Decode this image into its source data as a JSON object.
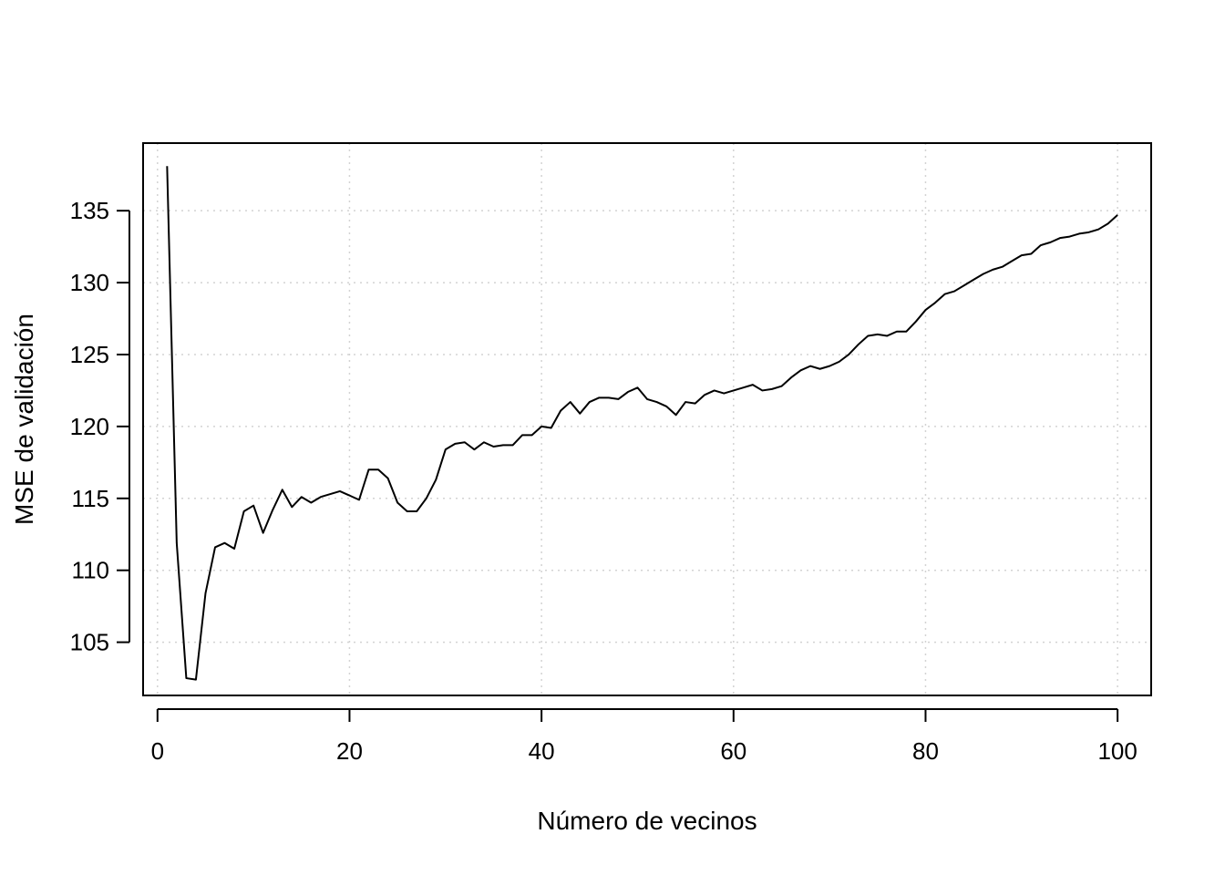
{
  "chart_data": {
    "type": "line",
    "title": "",
    "xlabel": "Número de vecinos",
    "ylabel": "MSE de validación",
    "xlim": [
      -1.5,
      103.5
    ],
    "ylim": [
      101.3,
      139.7
    ],
    "x_ticks": [
      0,
      20,
      40,
      60,
      80,
      100
    ],
    "y_ticks": [
      105,
      110,
      115,
      120,
      125,
      130,
      135
    ],
    "grid": true,
    "legend": "none",
    "line_color": "#000000",
    "grid_color": "#d3d3d3",
    "series": [
      {
        "x": [
          1,
          2,
          3,
          4,
          5,
          6,
          7,
          8,
          9,
          10,
          11,
          12,
          13,
          14,
          15,
          16,
          17,
          18,
          19,
          20,
          21,
          22,
          23,
          24,
          25,
          26,
          27,
          28,
          29,
          30,
          31,
          32,
          33,
          34,
          35,
          36,
          37,
          38,
          39,
          40,
          41,
          42,
          43,
          44,
          45,
          46,
          47,
          48,
          49,
          50,
          51,
          52,
          53,
          54,
          55,
          56,
          57,
          58,
          59,
          60,
          61,
          62,
          63,
          64,
          65,
          66,
          67,
          68,
          69,
          70,
          71,
          72,
          73,
          74,
          75,
          76,
          77,
          78,
          79,
          80,
          81,
          82,
          83,
          84,
          85,
          86,
          87,
          88,
          89,
          90,
          91,
          92,
          93,
          94,
          95,
          96,
          97,
          98,
          99,
          100
        ],
        "values": [
          138.1,
          111.9,
          102.5,
          102.4,
          108.4,
          111.6,
          111.9,
          111.5,
          114.1,
          114.5,
          112.6,
          114.2,
          115.6,
          114.4,
          115.1,
          114.7,
          115.1,
          115.3,
          115.5,
          115.2,
          114.9,
          117.0,
          117.0,
          116.4,
          114.7,
          114.1,
          114.1,
          115.0,
          116.3,
          118.4,
          118.8,
          118.9,
          118.4,
          118.9,
          118.6,
          118.7,
          118.7,
          119.4,
          119.4,
          120.0,
          119.9,
          121.1,
          121.7,
          120.9,
          121.7,
          122.0,
          122.0,
          121.9,
          122.4,
          122.7,
          121.9,
          121.7,
          121.4,
          120.8,
          121.7,
          121.6,
          122.2,
          122.5,
          122.3,
          122.5,
          122.7,
          122.9,
          122.5,
          122.6,
          122.8,
          123.4,
          123.9,
          124.2,
          124.0,
          124.2,
          124.5,
          125.0,
          125.7,
          126.3,
          126.4,
          126.3,
          126.6,
          126.6,
          127.3,
          128.1,
          128.6,
          129.2,
          129.4,
          129.8,
          130.2,
          130.6,
          130.9,
          131.1,
          131.5,
          131.9,
          132.0,
          132.6,
          132.8,
          133.1,
          133.2,
          133.4,
          133.5,
          133.7,
          134.1,
          134.7
        ]
      }
    ]
  }
}
